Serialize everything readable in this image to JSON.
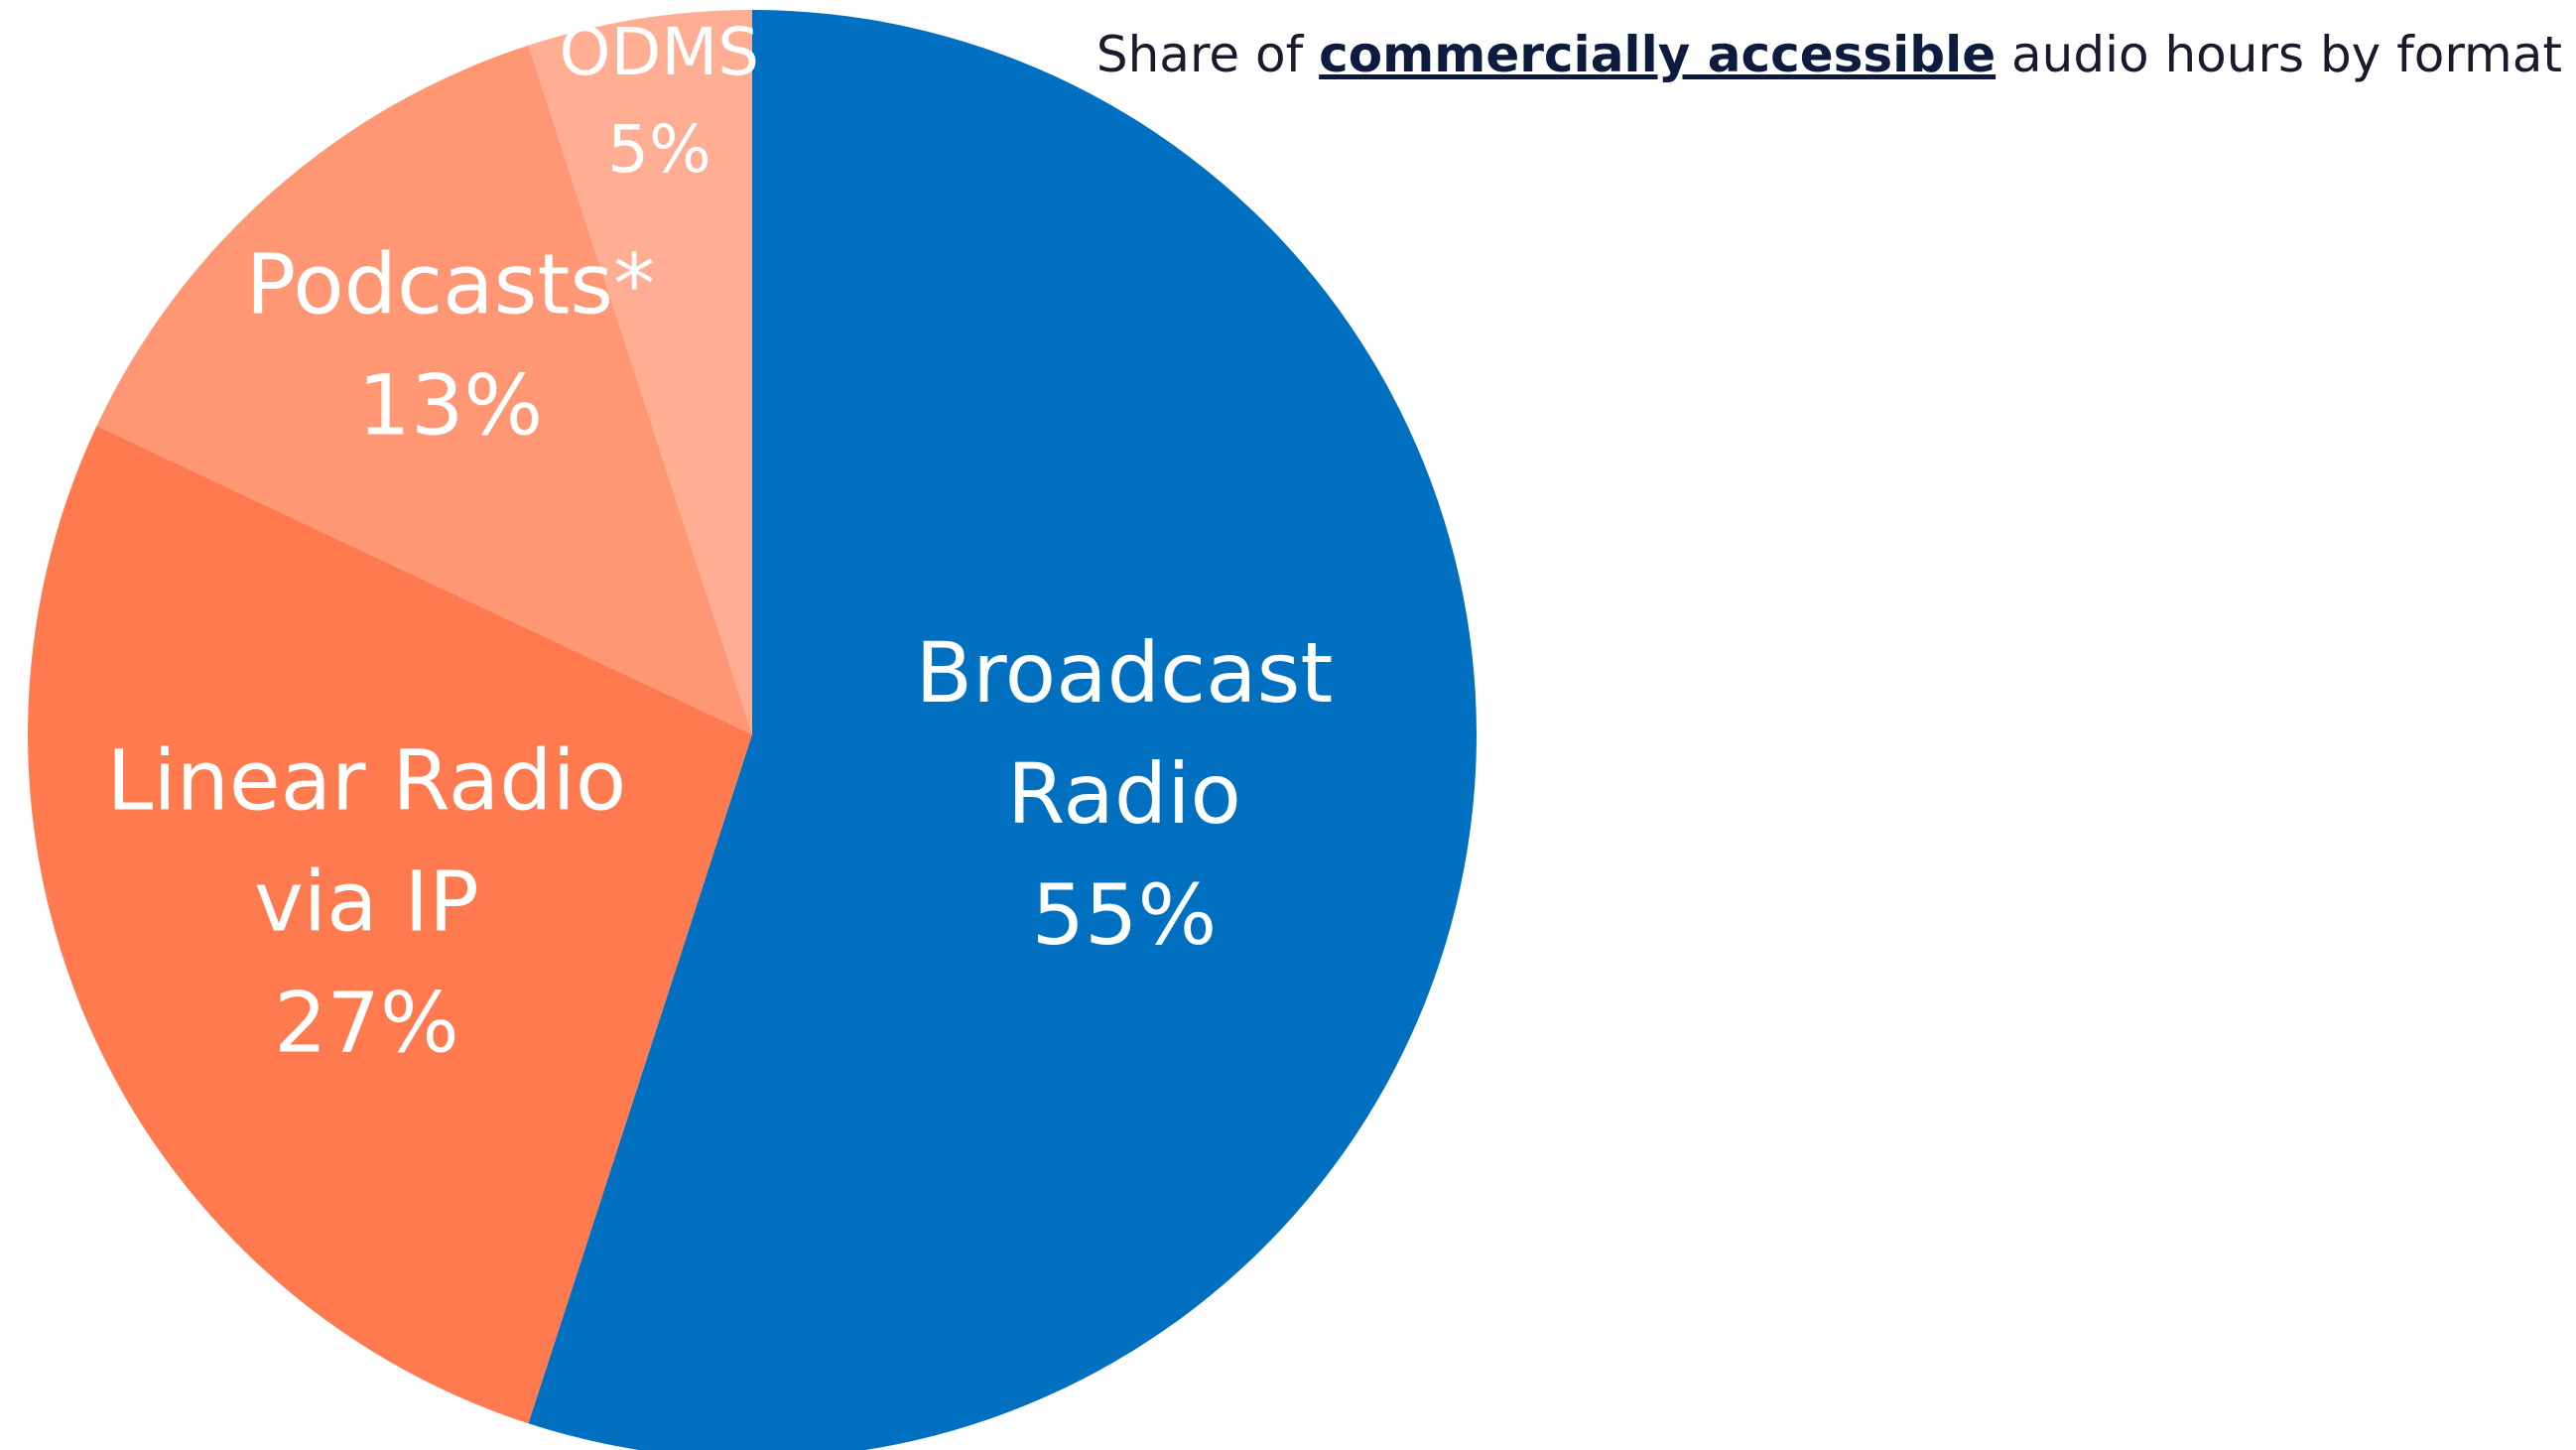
{
  "chart_data": {
    "type": "pie",
    "title": {
      "prefix": "Share of ",
      "emphasis": "commercially accessible",
      "suffix": " audio hours by format"
    },
    "slices": [
      {
        "lines": [
          "Broadcast",
          "Radio"
        ],
        "value": 55,
        "value_label": "55%",
        "color": "#0170c1"
      },
      {
        "lines": [
          "Linear Radio",
          "via IP"
        ],
        "value": 27,
        "value_label": "27%",
        "color": "#ff7b4f"
      },
      {
        "lines": [
          "Podcasts*"
        ],
        "value": 13,
        "value_label": "13%",
        "color": "#ff9775"
      },
      {
        "lines": [
          "ODMS"
        ],
        "value": 5,
        "value_label": "5%",
        "color": "#ffae93"
      }
    ],
    "start_angle_deg": 0,
    "direction": "clockwise",
    "legend": "none"
  }
}
